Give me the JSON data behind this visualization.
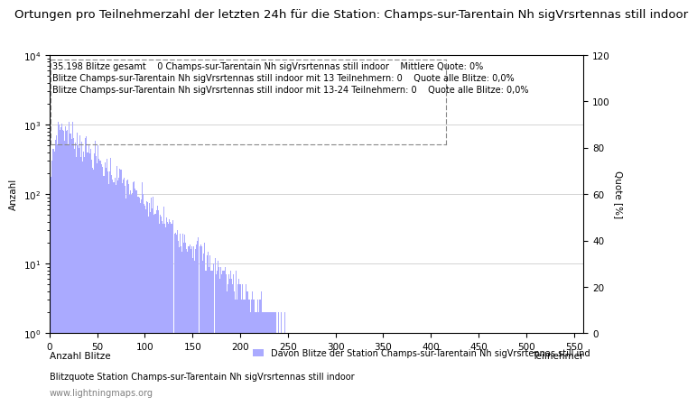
{
  "title": "Ortungen pro Teilnehmerzahl der letzten 24h für die Station: Champs-sur-Tarentain Nh sigVrsrtennas still indoor",
  "annotation_line1": "35.198 Blitze gesamt    0 Champs-sur-Tarentain Nh sigVrsrtennas still indoor    Mittlere Quote: 0%",
  "annotation_line2": "Blitze Champs-sur-Tarentain Nh sigVrsrtennas still indoor mit 13 Teilnehmern: 0    Quote alle Blitze: 0,0%",
  "annotation_line3": "Blitze Champs-sur-Tarentain Nh sigVrsrtennas still indoor mit 13-24 Teilnehmern: 0    Quote alle Blitze: 0,0%",
  "xlabel_left": "Anzahl Blitze",
  "xlabel_right": "Teilnehmer",
  "ylabel_left": "Anzahl",
  "ylabel_right": "Quote [%]",
  "legend_label": "Davon Blitze der Station Champs-sur-Tarentain Nh sigVrsrtennas still ind",
  "footer_line1": "Blitzquote Station Champs-sur-Tarentain Nh sigVrsrtennas still indoor",
  "footer_line2": "www.lightningmaps.org",
  "bar_color": "#aaaaff",
  "background_color": "#ffffff",
  "xlim": [
    0,
    560
  ],
  "ylim_right": [
    0,
    120
  ],
  "title_fontsize": 9.5,
  "annotation_fontsize": 7.0,
  "axis_fontsize": 7.5,
  "max_participants": 555
}
